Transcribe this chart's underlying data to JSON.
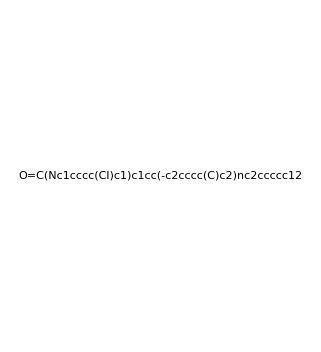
{
  "smiles": "O=C(Nc1cccc(Cl)c1)c1cc(-c2cccc(C)c2)nc2ccccc12",
  "title": "",
  "bg_color": "#ffffff",
  "line_color": "#1a1a2e",
  "figsize": [
    3.21,
    3.52
  ],
  "dpi": 100
}
